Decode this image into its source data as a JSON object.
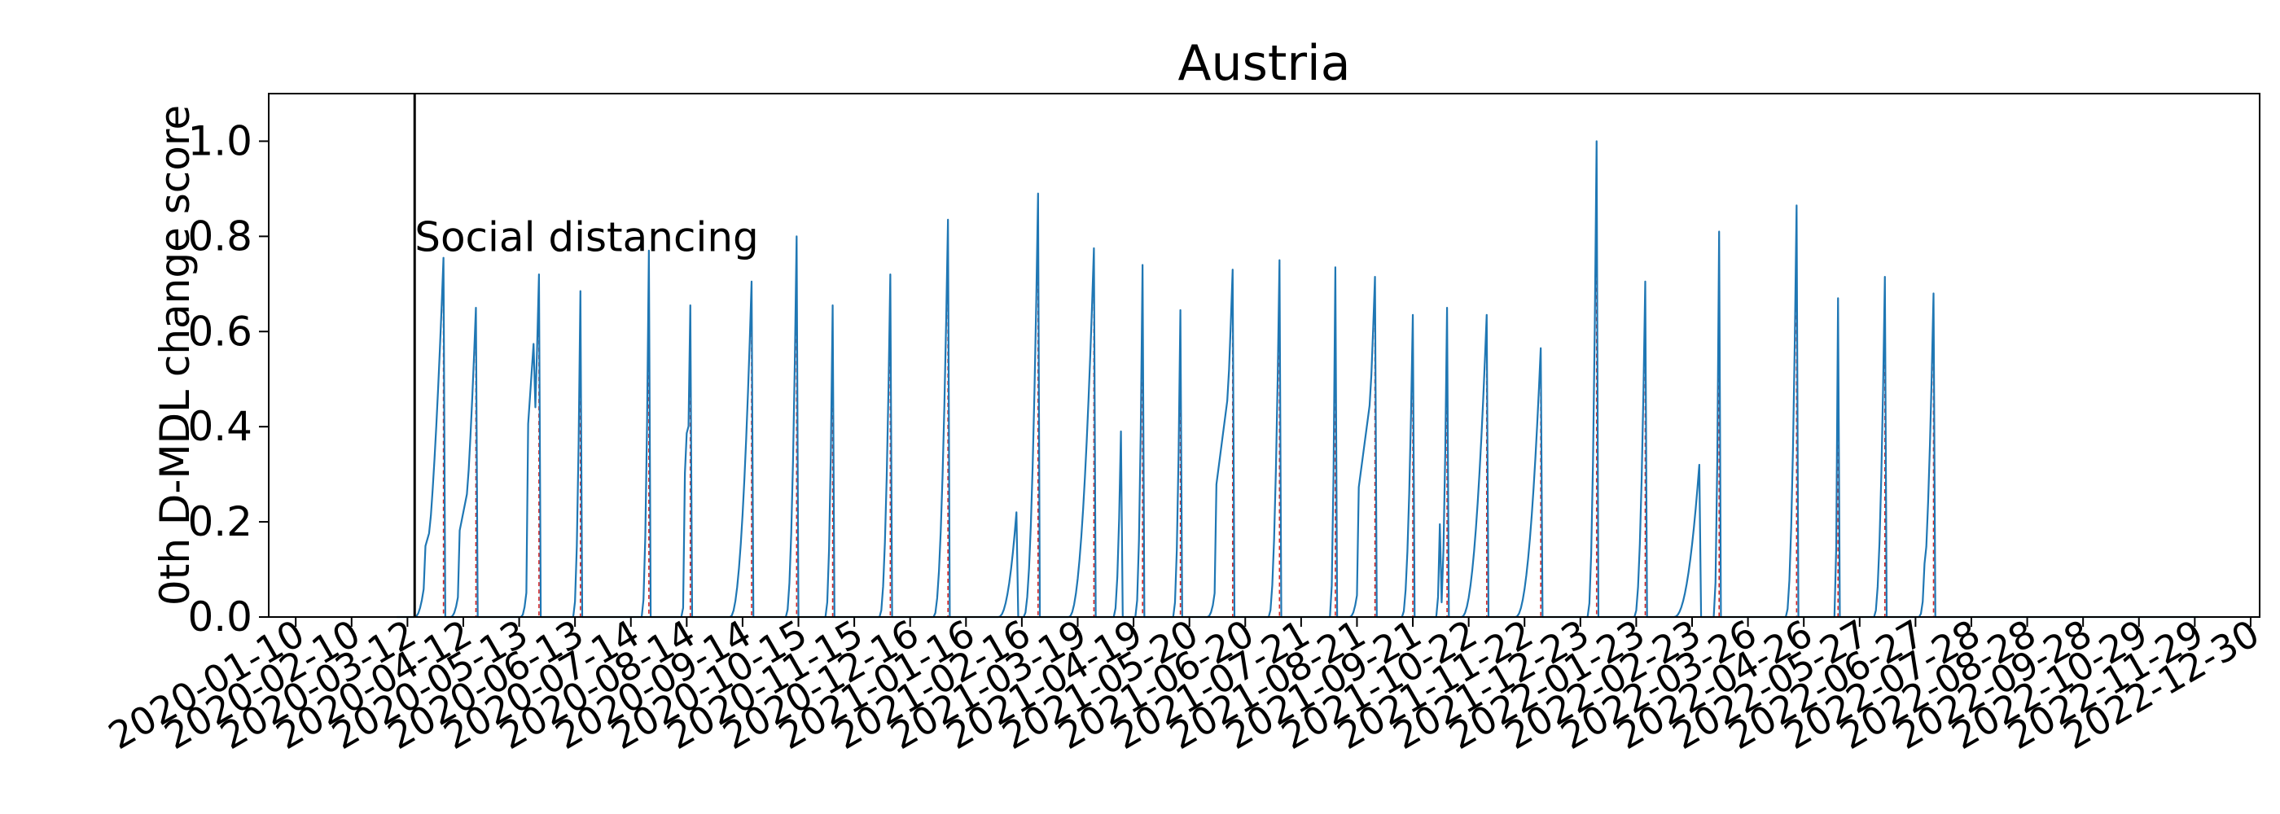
{
  "chart_data": {
    "type": "line",
    "title": "Austria",
    "xlabel": "",
    "ylabel": "0th D-MDL change score",
    "ylim": [
      0,
      1.1
    ],
    "grid": false,
    "legend": "none",
    "x_axis": {
      "type": "date",
      "range": [
        "2019-12-26",
        "2023-01-04"
      ],
      "tick_labels": [
        "2020-01-10",
        "2020-02-10",
        "2020-03-12",
        "2020-04-12",
        "2020-05-13",
        "2020-06-13",
        "2020-07-14",
        "2020-08-14",
        "2020-09-14",
        "2020-10-15",
        "2020-11-15",
        "2020-12-16",
        "2021-01-16",
        "2021-02-16",
        "2021-03-19",
        "2021-04-19",
        "2021-05-20",
        "2021-06-20",
        "2021-07-21",
        "2021-08-21",
        "2021-09-21",
        "2021-10-22",
        "2021-11-22",
        "2021-12-23",
        "2022-01-23",
        "2022-02-23",
        "2022-03-26",
        "2022-04-26",
        "2022-05-27",
        "2022-06-27",
        "2022-07-28",
        "2022-08-28",
        "2022-09-28",
        "2022-10-29",
        "2022-11-29",
        "2022-12-30"
      ]
    },
    "y_ticks": [
      "0.0",
      "0.2",
      "0.4",
      "0.6",
      "0.8",
      "1.0"
    ],
    "y_tick_values": [
      0,
      0.2,
      0.4,
      0.6,
      0.8,
      1.0
    ],
    "series_color": "#1f77b4",
    "change_line_color": "#d62728",
    "intervention_line_color": "#000000",
    "interventions": [
      {
        "date": "2020-03-16",
        "label": "Social distancing"
      }
    ],
    "data_start": "2020-03-06",
    "data_end": "2022-12-01",
    "peaks": [
      {
        "date": "2020-04-01",
        "value": 0.755,
        "width": 16,
        "shoulder": 0.24
      },
      {
        "date": "2020-04-19",
        "value": 0.65,
        "width": 14,
        "shoulder": 0.3
      },
      {
        "date": "2020-05-24",
        "value": 0.72,
        "width": 10,
        "shoulder": 0.63
      },
      {
        "date": "2020-06-16",
        "value": 0.685,
        "width": 4
      },
      {
        "date": "2020-07-24",
        "value": 0.77,
        "width": 4
      },
      {
        "date": "2020-08-16",
        "value": 0.655,
        "width": 5,
        "shoulder": 0.47
      },
      {
        "date": "2020-09-19",
        "value": 0.705,
        "width": 12
      },
      {
        "date": "2020-10-14",
        "value": 0.8,
        "width": 6
      },
      {
        "date": "2020-11-03",
        "value": 0.655,
        "width": 4
      },
      {
        "date": "2020-12-05",
        "value": 0.72,
        "width": 6
      },
      {
        "date": "2021-01-06",
        "value": 0.835,
        "width": 8
      },
      {
        "date": "2021-02-13",
        "value": 0.22,
        "width": 10
      },
      {
        "date": "2021-02-25",
        "value": 0.89,
        "width": 8
      },
      {
        "date": "2021-03-28",
        "value": 0.775,
        "width": 14
      },
      {
        "date": "2021-04-12",
        "value": 0.39,
        "width": 4
      },
      {
        "date": "2021-04-24",
        "value": 0.74,
        "width": 4
      },
      {
        "date": "2021-05-15",
        "value": 0.645,
        "width": 4
      },
      {
        "date": "2021-06-03",
        "value": 0.05,
        "width": 3
      },
      {
        "date": "2021-06-13",
        "value": 0.73,
        "width": 14,
        "shoulder": 0.46
      },
      {
        "date": "2021-07-09",
        "value": 0.75,
        "width": 6
      },
      {
        "date": "2021-08-09",
        "value": 0.735,
        "width": 3
      },
      {
        "date": "2021-08-31",
        "value": 0.715,
        "width": 14,
        "shoulder": 0.45
      },
      {
        "date": "2021-09-21",
        "value": 0.635,
        "width": 6
      },
      {
        "date": "2021-10-06",
        "value": 0.195,
        "width": 2
      },
      {
        "date": "2021-10-10",
        "value": 0.65,
        "width": 4
      },
      {
        "date": "2021-11-01",
        "value": 0.635,
        "width": 14
      },
      {
        "date": "2021-12-01",
        "value": 0.565,
        "width": 14
      },
      {
        "date": "2022-01-01",
        "value": 1.0,
        "width": 5
      },
      {
        "date": "2022-01-28",
        "value": 0.705,
        "width": 6
      },
      {
        "date": "2022-02-27",
        "value": 0.32,
        "width": 14
      },
      {
        "date": "2022-03-10",
        "value": 0.81,
        "width": 3
      },
      {
        "date": "2022-04-22",
        "value": 0.865,
        "width": 6
      },
      {
        "date": "2022-05-15",
        "value": 0.67,
        "width": 2
      },
      {
        "date": "2022-06-10",
        "value": 0.715,
        "width": 6
      },
      {
        "date": "2022-07-07",
        "value": 0.68,
        "width": 8,
        "shoulder": 0.18
      }
    ]
  }
}
